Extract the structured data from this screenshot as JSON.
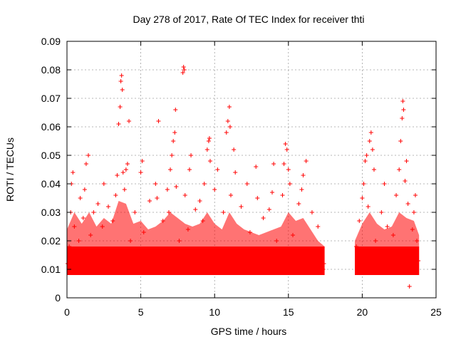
{
  "chart_data": {
    "type": "scatter",
    "title": "Day 278 of 2017, Rate Of TEC Index for receiver thti",
    "xlabel": "GPS time / hours",
    "ylabel": "ROTI / TECUs",
    "xlim": [
      0,
      25
    ],
    "ylim": [
      0,
      0.09
    ],
    "x_ticks": [
      0,
      5,
      10,
      15,
      20,
      25
    ],
    "x_tick_labels": [
      "0",
      "5",
      "10",
      "15",
      "20",
      "25"
    ],
    "y_ticks": [
      0,
      0.01,
      0.02,
      0.03,
      0.04,
      0.05,
      0.06,
      0.07,
      0.08,
      0.09
    ],
    "y_tick_labels": [
      "0",
      "0.01",
      "0.02",
      "0.03",
      "0.04",
      "0.05",
      "0.06",
      "0.07",
      "0.08",
      "0.09"
    ],
    "grid": true,
    "marker": "+",
    "series": [
      {
        "name": "ROTI",
        "color": "#ff0000",
        "points": [
          [
            0.05,
            0.012
          ],
          [
            0.15,
            0.018
          ],
          [
            0.25,
            0.03
          ],
          [
            0.3,
            0.04
          ],
          [
            0.4,
            0.044
          ],
          [
            0.5,
            0.025
          ],
          [
            0.6,
            0.015
          ],
          [
            0.7,
            0.01
          ],
          [
            0.8,
            0.02
          ],
          [
            0.9,
            0.035
          ],
          [
            1.0,
            0.012
          ],
          [
            1.1,
            0.028
          ],
          [
            1.2,
            0.038
          ],
          [
            1.3,
            0.047
          ],
          [
            1.45,
            0.05
          ],
          [
            1.6,
            0.022
          ],
          [
            1.7,
            0.013
          ],
          [
            1.8,
            0.03
          ],
          [
            2.0,
            0.015
          ],
          [
            2.1,
            0.033
          ],
          [
            2.2,
            0.011
          ],
          [
            2.4,
            0.025
          ],
          [
            2.5,
            0.04
          ],
          [
            2.6,
            0.014
          ],
          [
            2.8,
            0.032
          ],
          [
            3.0,
            0.012
          ],
          [
            3.1,
            0.027
          ],
          [
            3.3,
            0.036
          ],
          [
            3.4,
            0.043
          ],
          [
            3.5,
            0.061
          ],
          [
            3.6,
            0.067
          ],
          [
            3.65,
            0.076
          ],
          [
            3.7,
            0.078
          ],
          [
            3.75,
            0.073
          ],
          [
            3.8,
            0.044
          ],
          [
            3.9,
            0.038
          ],
          [
            4.0,
            0.045
          ],
          [
            4.1,
            0.047
          ],
          [
            4.2,
            0.062
          ],
          [
            4.3,
            0.02
          ],
          [
            4.4,
            0.011
          ],
          [
            4.6,
            0.03
          ],
          [
            4.8,
            0.015
          ],
          [
            5.0,
            0.044
          ],
          [
            5.1,
            0.048
          ],
          [
            5.2,
            0.023
          ],
          [
            5.4,
            0.012
          ],
          [
            5.6,
            0.034
          ],
          [
            5.8,
            0.013
          ],
          [
            6.0,
            0.04
          ],
          [
            6.1,
            0.035
          ],
          [
            6.2,
            0.062
          ],
          [
            6.3,
            0.016
          ],
          [
            6.5,
            0.027
          ],
          [
            6.7,
            0.01
          ],
          [
            6.8,
            0.038
          ],
          [
            6.9,
            0.03
          ],
          [
            7.0,
            0.045
          ],
          [
            7.1,
            0.05
          ],
          [
            7.2,
            0.055
          ],
          [
            7.3,
            0.058
          ],
          [
            7.35,
            0.066
          ],
          [
            7.4,
            0.039
          ],
          [
            7.6,
            0.02
          ],
          [
            7.7,
            0.013
          ],
          [
            7.85,
            0.079
          ],
          [
            7.9,
            0.081
          ],
          [
            7.95,
            0.08
          ],
          [
            8.0,
            0.036
          ],
          [
            8.2,
            0.024
          ],
          [
            8.3,
            0.045
          ],
          [
            8.4,
            0.05
          ],
          [
            8.5,
            0.014
          ],
          [
            8.7,
            0.031
          ],
          [
            8.9,
            0.012
          ],
          [
            9.0,
            0.034
          ],
          [
            9.2,
            0.027
          ],
          [
            9.3,
            0.04
          ],
          [
            9.5,
            0.052
          ],
          [
            9.6,
            0.055
          ],
          [
            9.65,
            0.056
          ],
          [
            9.7,
            0.048
          ],
          [
            9.8,
            0.017
          ],
          [
            10.0,
            0.038
          ],
          [
            10.2,
            0.045
          ],
          [
            10.4,
            0.014
          ],
          [
            10.6,
            0.03
          ],
          [
            10.8,
            0.058
          ],
          [
            10.9,
            0.062
          ],
          [
            11.0,
            0.067
          ],
          [
            11.05,
            0.06
          ],
          [
            11.1,
            0.036
          ],
          [
            11.3,
            0.052
          ],
          [
            11.4,
            0.044
          ],
          [
            11.6,
            0.016
          ],
          [
            11.8,
            0.032
          ],
          [
            12.0,
            0.013
          ],
          [
            12.2,
            0.04
          ],
          [
            12.4,
            0.023
          ],
          [
            12.6,
            0.011
          ],
          [
            12.8,
            0.046
          ],
          [
            12.9,
            0.035
          ],
          [
            13.1,
            0.016
          ],
          [
            13.3,
            0.028
          ],
          [
            13.5,
            0.012
          ],
          [
            13.7,
            0.031
          ],
          [
            13.9,
            0.037
          ],
          [
            14.0,
            0.047
          ],
          [
            14.2,
            0.02
          ],
          [
            14.4,
            0.013
          ],
          [
            14.6,
            0.036
          ],
          [
            14.7,
            0.047
          ],
          [
            14.8,
            0.054
          ],
          [
            14.9,
            0.052
          ],
          [
            15.0,
            0.045
          ],
          [
            15.1,
            0.04
          ],
          [
            15.3,
            0.022
          ],
          [
            15.5,
            0.013
          ],
          [
            15.7,
            0.033
          ],
          [
            15.9,
            0.038
          ],
          [
            16.0,
            0.043
          ],
          [
            16.2,
            0.048
          ],
          [
            16.4,
            0.016
          ],
          [
            16.6,
            0.03
          ],
          [
            16.8,
            0.011
          ],
          [
            17.0,
            0.025
          ],
          [
            17.2,
            0.014
          ],
          [
            17.35,
            0.01
          ],
          [
            17.4,
            0.012
          ],
          [
            19.6,
            0.018
          ],
          [
            19.7,
            0.012
          ],
          [
            19.8,
            0.027
          ],
          [
            20.0,
            0.035
          ],
          [
            20.1,
            0.04
          ],
          [
            20.2,
            0.048
          ],
          [
            20.3,
            0.05
          ],
          [
            20.4,
            0.032
          ],
          [
            20.5,
            0.055
          ],
          [
            20.6,
            0.058
          ],
          [
            20.7,
            0.052
          ],
          [
            20.8,
            0.045
          ],
          [
            20.9,
            0.02
          ],
          [
            21.1,
            0.012
          ],
          [
            21.3,
            0.03
          ],
          [
            21.5,
            0.04
          ],
          [
            21.7,
            0.025
          ],
          [
            21.9,
            0.011
          ],
          [
            22.1,
            0.022
          ],
          [
            22.3,
            0.036
          ],
          [
            22.5,
            0.045
          ],
          [
            22.6,
            0.055
          ],
          [
            22.7,
            0.063
          ],
          [
            22.75,
            0.069
          ],
          [
            22.8,
            0.066
          ],
          [
            22.9,
            0.041
          ],
          [
            23.0,
            0.048
          ],
          [
            23.1,
            0.033
          ],
          [
            23.2,
            0.004
          ],
          [
            23.3,
            0.016
          ],
          [
            23.4,
            0.024
          ],
          [
            23.5,
            0.03
          ],
          [
            23.6,
            0.036
          ],
          [
            23.7,
            0.02
          ],
          [
            23.8,
            0.013
          ]
        ]
      }
    ],
    "band": {
      "segments": [
        [
          0.0,
          17.45
        ],
        [
          19.5,
          23.85
        ]
      ],
      "base_low": 0.008,
      "base_high": 0.018,
      "upper_envelope": [
        [
          0.0,
          0.024
        ],
        [
          0.5,
          0.03
        ],
        [
          1.0,
          0.026
        ],
        [
          1.5,
          0.03
        ],
        [
          2.0,
          0.025
        ],
        [
          2.5,
          0.028
        ],
        [
          3.0,
          0.026
        ],
        [
          3.5,
          0.034
        ],
        [
          4.0,
          0.033
        ],
        [
          4.5,
          0.026
        ],
        [
          5.0,
          0.027
        ],
        [
          5.5,
          0.024
        ],
        [
          6.0,
          0.025
        ],
        [
          6.5,
          0.027
        ],
        [
          7.0,
          0.03
        ],
        [
          7.5,
          0.028
        ],
        [
          8.0,
          0.026
        ],
        [
          8.5,
          0.025
        ],
        [
          9.0,
          0.026
        ],
        [
          9.5,
          0.03
        ],
        [
          10.0,
          0.026
        ],
        [
          10.5,
          0.024
        ],
        [
          11.0,
          0.03
        ],
        [
          11.5,
          0.026
        ],
        [
          12.0,
          0.024
        ],
        [
          12.5,
          0.023
        ],
        [
          13.0,
          0.022
        ],
        [
          13.5,
          0.023
        ],
        [
          14.0,
          0.024
        ],
        [
          14.5,
          0.025
        ],
        [
          15.0,
          0.03
        ],
        [
          15.5,
          0.027
        ],
        [
          16.0,
          0.028
        ],
        [
          16.5,
          0.024
        ],
        [
          17.0,
          0.02
        ],
        [
          17.45,
          0.018
        ],
        [
          19.5,
          0.02
        ],
        [
          20.0,
          0.026
        ],
        [
          20.5,
          0.03
        ],
        [
          21.0,
          0.026
        ],
        [
          21.5,
          0.024
        ],
        [
          22.0,
          0.025
        ],
        [
          22.5,
          0.03
        ],
        [
          23.0,
          0.028
        ],
        [
          23.5,
          0.027
        ],
        [
          23.85,
          0.022
        ]
      ]
    }
  }
}
